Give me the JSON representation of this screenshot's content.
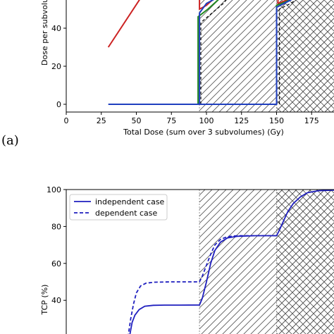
{
  "panels": {
    "a_label": "(a)"
  },
  "chart_data": [
    {
      "type": "line",
      "xlabel": "Total Dose (sum over 3 subvolumes) (Gy)",
      "ylabel": "Dose per subvolu",
      "xlim": [
        0,
        195
      ],
      "ylim": [
        -5,
        60
      ],
      "x_ticks": [
        "0",
        "25",
        "50",
        "75",
        "100",
        "125",
        "150",
        "175"
      ],
      "y_ticks": [
        "0",
        "20",
        "40"
      ],
      "shaded_regions": [
        {
          "from": 95,
          "to": 195,
          "pattern": "diagonal-hatch"
        },
        {
          "from": 150,
          "to": 195,
          "pattern": "cross-hatch"
        }
      ],
      "series": [
        {
          "color": "#cc2222",
          "style": "solid",
          "points": [
            [
              30,
              30
            ],
            [
              55,
              58
            ]
          ]
        },
        {
          "color": "#cc2222",
          "style": "solid",
          "points": [
            [
              95,
              60
            ],
            [
              95,
              50
            ],
            [
              100,
              52
            ],
            [
              112,
              60
            ]
          ]
        },
        {
          "color": "#cc2222",
          "style": "solid",
          "points": [
            [
              151,
              60
            ],
            [
              151,
              53
            ],
            [
              158,
              55
            ],
            [
              166,
              60
            ]
          ]
        },
        {
          "color": "#228822",
          "style": "solid",
          "points": [
            [
              94,
              0
            ],
            [
              94,
              46
            ],
            [
              101,
              50
            ],
            [
              110,
              56
            ],
            [
              116,
              60
            ]
          ]
        },
        {
          "color": "#228822",
          "style": "solid",
          "points": [
            [
              150,
              0
            ],
            [
              150,
              52
            ],
            [
              157,
              54
            ],
            [
              165,
              57
            ],
            [
              172,
              60
            ]
          ]
        },
        {
          "color": "#000000",
          "style": "dashed",
          "points": [
            [
              96,
              0
            ],
            [
              96,
              43
            ],
            [
              104,
              48
            ],
            [
              112,
              53
            ],
            [
              120,
              60
            ]
          ]
        },
        {
          "color": "#000000",
          "style": "dashed",
          "points": [
            [
              152,
              0
            ],
            [
              152,
              50
            ],
            [
              160,
              53
            ],
            [
              168,
              57
            ],
            [
              174,
              60
            ]
          ]
        },
        {
          "color": "#1f3fbf",
          "style": "solid",
          "points": [
            [
              30,
              0
            ],
            [
              95,
              0
            ],
            [
              95,
              48
            ],
            [
              100,
              53
            ],
            [
              110,
              57
            ],
            [
              118,
              60
            ]
          ]
        },
        {
          "color": "#1f3fbf",
          "style": "solid",
          "points": [
            [
              95,
              0
            ],
            [
              150,
              0
            ],
            [
              150,
              51
            ],
            [
              158,
              54
            ],
            [
              168,
              58
            ],
            [
              174,
              60
            ]
          ]
        }
      ]
    },
    {
      "type": "line",
      "ylabel": "TCP (%)",
      "xlim": [
        0,
        195
      ],
      "ylim": [
        20,
        100
      ],
      "y_ticks": [
        "40",
        "60",
        "80",
        "100"
      ],
      "legend": {
        "position": "top-left",
        "entries": [
          "independent case",
          "dependent case"
        ]
      },
      "shaded_regions": [
        {
          "from": 95,
          "to": 195,
          "pattern": "diagonal-hatch"
        },
        {
          "from": 150,
          "to": 195,
          "pattern": "cross-hatch"
        }
      ],
      "series": [
        {
          "name": "independent case",
          "color": "#1f1fbf",
          "style": "solid",
          "points": [
            [
              45,
              20
            ],
            [
              47,
              28
            ],
            [
              49,
              32
            ],
            [
              52,
              35
            ],
            [
              56,
              36.8
            ],
            [
              62,
              37.3
            ],
            [
              70,
              37.4
            ],
            [
              80,
              37.4
            ],
            [
              95,
              37.5
            ],
            [
              97,
              41
            ],
            [
              100,
              50
            ],
            [
              103,
              60
            ],
            [
              106,
              67
            ],
            [
              110,
              71.5
            ],
            [
              115,
              73.8
            ],
            [
              122,
              74.7
            ],
            [
              135,
              75
            ],
            [
              150,
              75
            ],
            [
              152,
              78
            ],
            [
              155,
              83
            ],
            [
              158,
              88
            ],
            [
              162,
              92.5
            ],
            [
              167,
              96
            ],
            [
              172,
              98.3
            ],
            [
              180,
              99.4
            ],
            [
              195,
              99.8
            ]
          ]
        },
        {
          "name": "dependent case",
          "color": "#1f1fbf",
          "style": "dashed",
          "points": [
            [
              44,
              20
            ],
            [
              46,
              30
            ],
            [
              48,
              38
            ],
            [
              50,
              44
            ],
            [
              53,
              47.8
            ],
            [
              57,
              49.3
            ],
            [
              63,
              49.8
            ],
            [
              75,
              50
            ],
            [
              95,
              50
            ],
            [
              97,
              53
            ],
            [
              100,
              59
            ],
            [
              103,
              65
            ],
            [
              106,
              70
            ],
            [
              110,
              73
            ],
            [
              115,
              74.5
            ],
            [
              122,
              75
            ],
            [
              135,
              75
            ],
            [
              150,
              75
            ]
          ]
        }
      ]
    }
  ]
}
